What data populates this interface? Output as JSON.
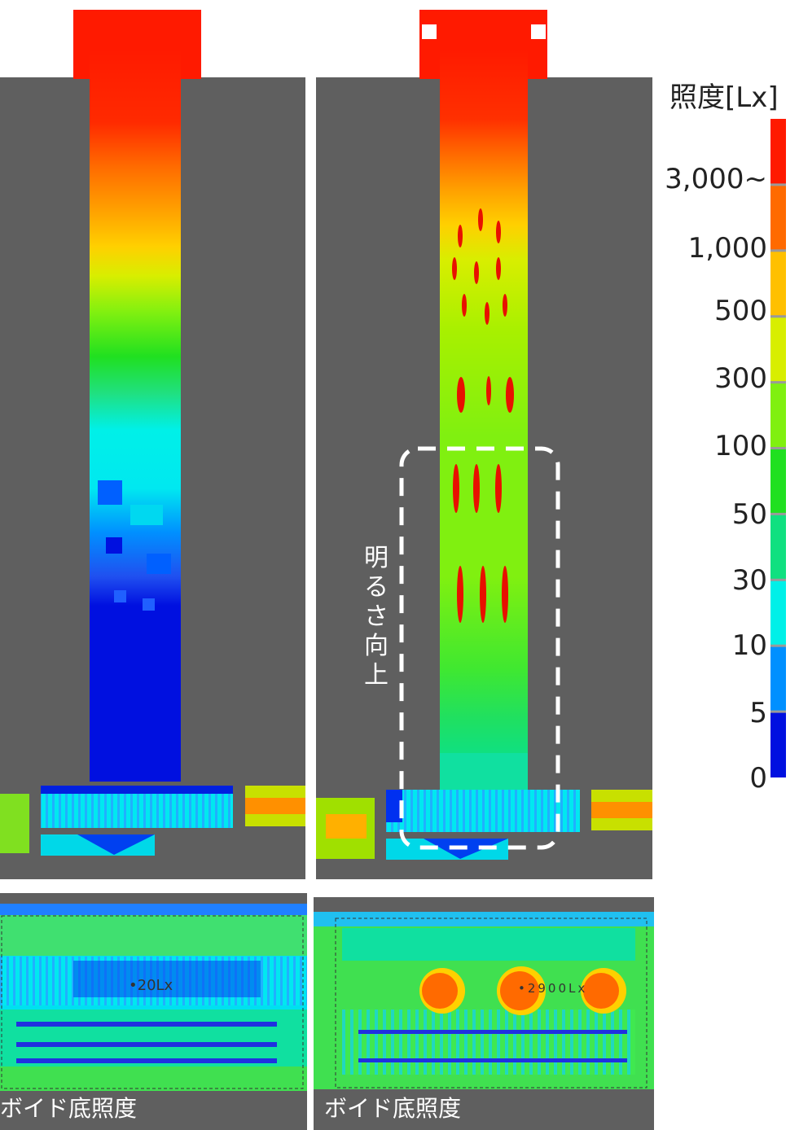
{
  "legend": {
    "title": "照度[Lx]",
    "ticks": [
      "3,000~",
      "1,000",
      "500",
      "300",
      "100",
      "50",
      "30",
      "10",
      "5",
      "0"
    ],
    "colors": [
      "#ff1a00",
      "#ff6a00",
      "#ffc000",
      "#d8ee00",
      "#80f010",
      "#20e020",
      "#10e080",
      "#00f0e8",
      "#0090ff",
      "#0010e0"
    ]
  },
  "callout": {
    "text": "明るさ向上"
  },
  "panels": {
    "before_caption": "ボイド底照度",
    "after_caption": "ボイド底照度",
    "before_point": "•20Lx",
    "after_point": "•2900Lx"
  }
}
